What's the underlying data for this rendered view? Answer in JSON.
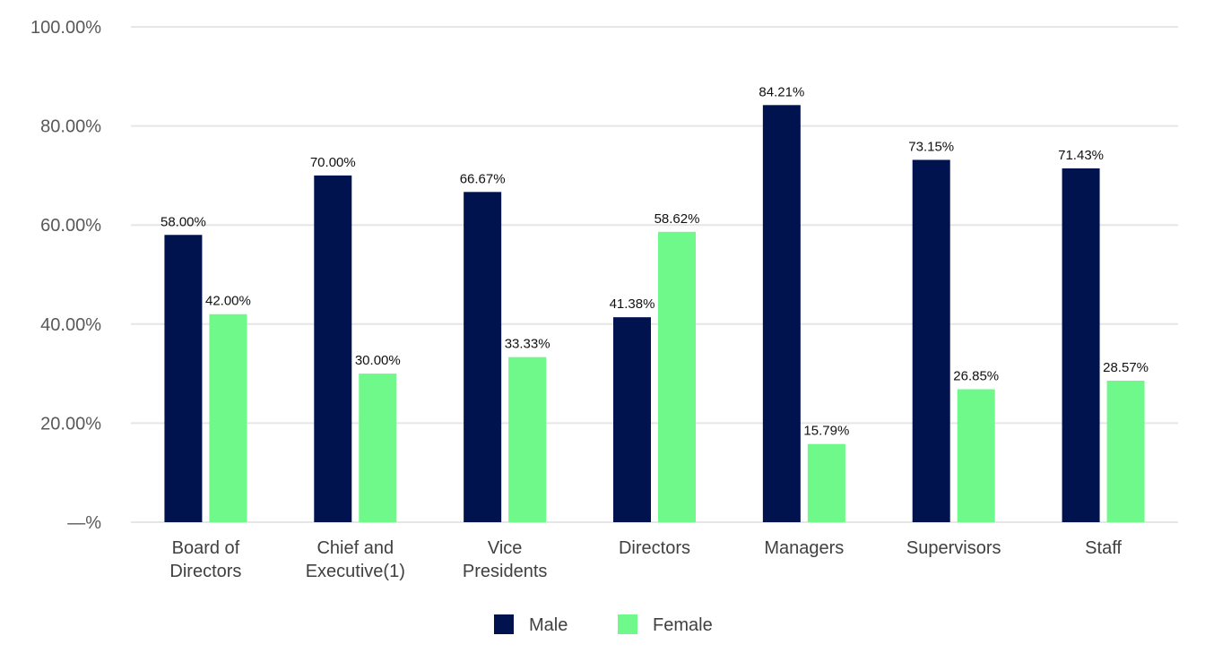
{
  "chart_data": {
    "type": "bar",
    "title": "",
    "xlabel": "",
    "ylabel": "",
    "ylim": [
      0,
      100
    ],
    "yticks": [
      0,
      20,
      40,
      60,
      80,
      100
    ],
    "ytick_labels": [
      "—%",
      "20.00%",
      "40.00%",
      "60.00%",
      "80.00%",
      "100.00%"
    ],
    "grid": true,
    "legend_position": "bottom-center",
    "categories": [
      [
        "Board of",
        "Directors"
      ],
      [
        "Chief and",
        "Executive(1)"
      ],
      [
        "Vice",
        "Presidents"
      ],
      [
        "Directors"
      ],
      [
        "Managers"
      ],
      [
        "Supervisors"
      ],
      [
        "Staff"
      ]
    ],
    "series": [
      {
        "name": "Male",
        "color": "#00134f",
        "values": [
          58.0,
          70.0,
          66.67,
          41.38,
          84.21,
          73.15,
          71.43
        ],
        "labels": [
          "58.00%",
          "70.00%",
          "66.67%",
          "41.38%",
          "84.21%",
          "73.15%",
          "71.43%"
        ]
      },
      {
        "name": "Female",
        "color": "#6ef98a",
        "values": [
          42.0,
          30.0,
          33.33,
          58.62,
          15.79,
          26.85,
          28.57
        ],
        "labels": [
          "42.00%",
          "30.00%",
          "33.33%",
          "58.62%",
          "15.79%",
          "26.85%",
          "28.57%"
        ]
      }
    ]
  }
}
